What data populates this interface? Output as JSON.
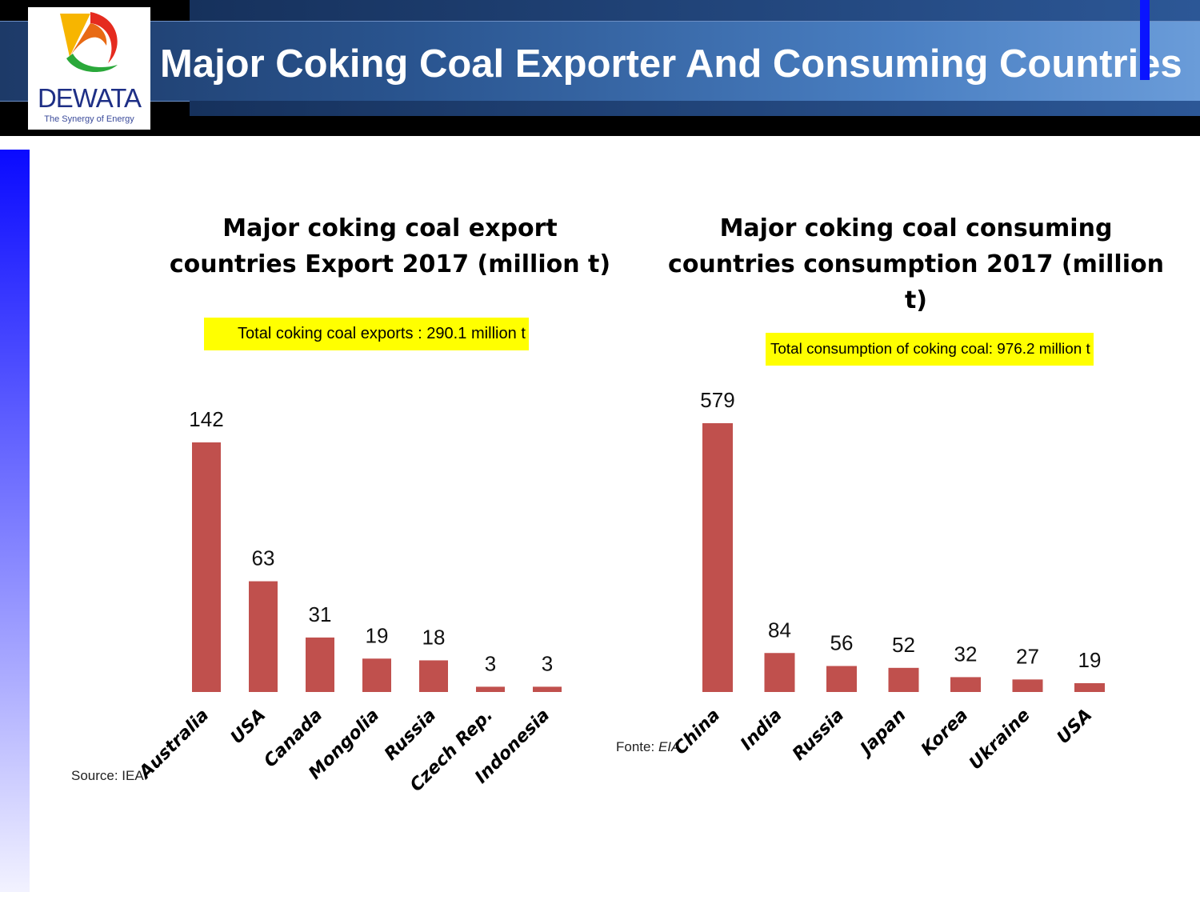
{
  "slide": {
    "title": "Major Coking Coal Exporter And Consuming Countries",
    "accent_color": "#0a14ff"
  },
  "logo": {
    "name": "DEWATA",
    "tagline": "The Synergy of Energy"
  },
  "chart_data": [
    {
      "type": "bar",
      "title": "Major coking coal export countries Export 2017 (million t)",
      "annotation": "Total coking coal exports : 290.1 million t",
      "source": "Source: IEA",
      "categories": [
        "Australia",
        "USA",
        "Canada",
        "Mongolia",
        "Russia",
        "Czech Rep.",
        "Indonesia"
      ],
      "values": [
        142,
        63,
        31,
        19,
        18,
        3,
        3
      ],
      "bar_color": "#c0504d",
      "grid": false
    },
    {
      "type": "bar",
      "title": "Major coking coal consuming countries consumption 2017 (million t)",
      "annotation": "Total consumption of coking coal: 976.2 million t",
      "source_label": "Fonte:",
      "source_name": "EIA",
      "categories": [
        "China",
        "India",
        "Russia",
        "Japan",
        "Korea",
        "Ukraine",
        "USA"
      ],
      "values": [
        579,
        84,
        56,
        52,
        32,
        27,
        19
      ],
      "bar_color": "#c0504d",
      "grid": false
    }
  ]
}
